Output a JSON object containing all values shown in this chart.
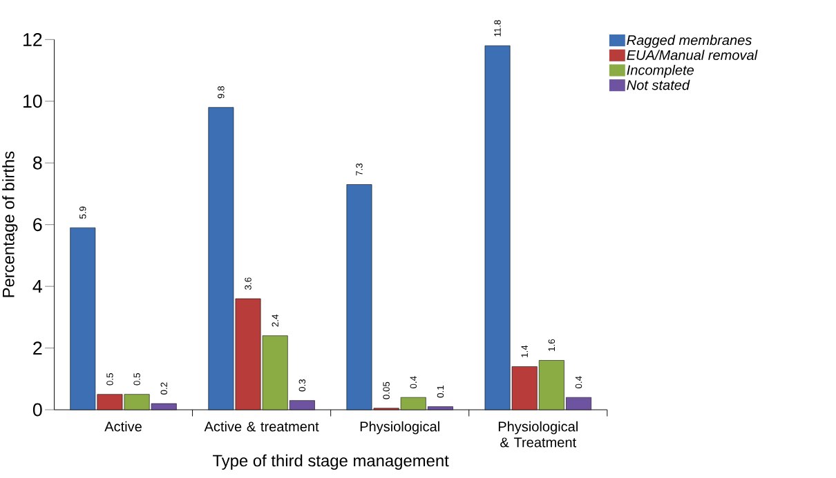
{
  "chart_data": {
    "type": "bar",
    "xlabel": "Type of third stage management",
    "ylabel": "Percentage of births",
    "categories": [
      "Active",
      "Active & treatment",
      "Physiological",
      "Physiological & Treatment"
    ],
    "series": [
      {
        "name": "Ragged membranes",
        "color": "#3d6fb4",
        "values": [
          5.9,
          9.8,
          7.3,
          11.8
        ]
      },
      {
        "name": "EUA/Manual removal",
        "color": "#b83c3a",
        "values": [
          0.5,
          3.6,
          0.05,
          1.4
        ]
      },
      {
        "name": "Incomplete",
        "color": "#8bac45",
        "values": [
          0.5,
          2.4,
          0.4,
          1.6
        ]
      },
      {
        "name": "Not stated",
        "color": "#6e53a0",
        "values": [
          0.2,
          0.3,
          0.1,
          0.4
        ]
      }
    ],
    "ylim": [
      0,
      12
    ],
    "yticks": [
      0,
      2,
      4,
      6,
      8,
      10,
      12
    ],
    "grid": false,
    "legend": "top right",
    "data_labels": true
  }
}
